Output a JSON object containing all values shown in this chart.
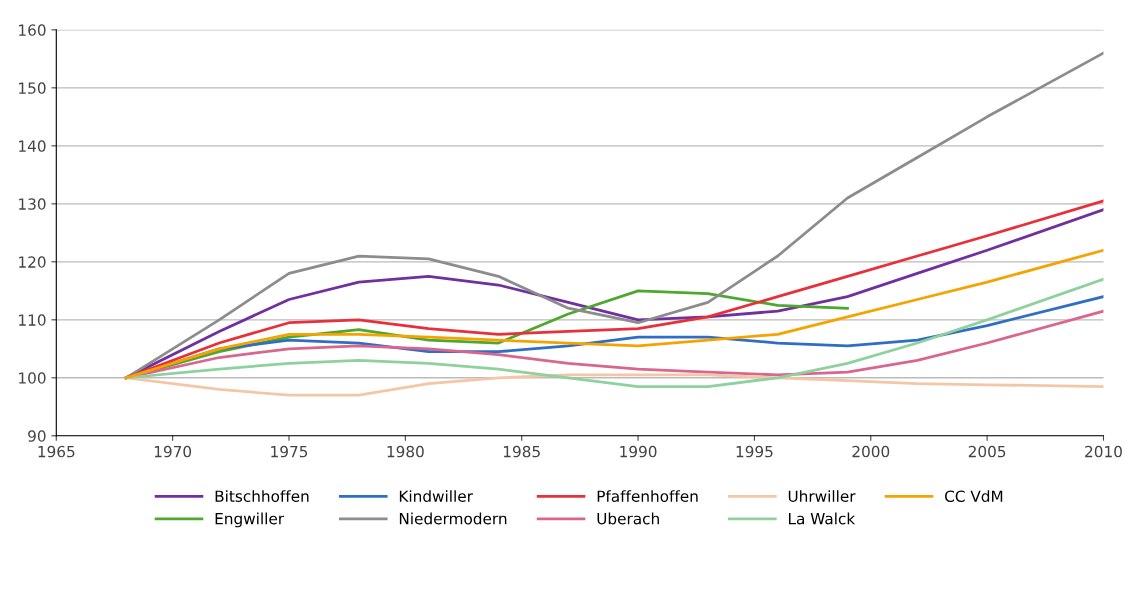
{
  "chart_data": {
    "type": "line",
    "x": [
      1968,
      1972,
      1975,
      1978,
      1981,
      1984,
      1987,
      1990,
      1993,
      1996,
      1999,
      2002,
      2005,
      2010
    ],
    "xlim": [
      1965,
      2010
    ],
    "xticks": [
      1965,
      1970,
      1975,
      1980,
      1985,
      1990,
      1995,
      2000,
      2005,
      2010
    ],
    "ylim": [
      90,
      160
    ],
    "yticks": [
      90,
      100,
      110,
      120,
      130,
      140,
      150,
      160
    ],
    "grid": "y",
    "legend": "bottom",
    "marker": "none",
    "line_style": "solid",
    "series": [
      {
        "name": "Bitschhoffen",
        "color": "#7030a0",
        "values": [
          100,
          108,
          113.5,
          116.5,
          117.5,
          116,
          113,
          110,
          110.5,
          111.5,
          114,
          118,
          122,
          129
        ]
      },
      {
        "name": "Engwiller",
        "color": "#4ea72e",
        "values": [
          100,
          104.5,
          107,
          108.3,
          106.5,
          106,
          111,
          115,
          114.5,
          112.5,
          112,
          null,
          null,
          null
        ]
      },
      {
        "name": "Kindwiller",
        "color": "#2e6ec4",
        "values": [
          100,
          105,
          106.5,
          106,
          104.5,
          104.5,
          105.5,
          107,
          107,
          106,
          105.5,
          106.5,
          109,
          114
        ]
      },
      {
        "name": "Niedermodern",
        "color": "#8c8c8c",
        "values": [
          100,
          110,
          118,
          121,
          120.5,
          117.5,
          112,
          109.5,
          113,
          121,
          131,
          138,
          145,
          156
        ]
      },
      {
        "name": "Pfaffenhoffen",
        "color": "#e8303a",
        "values": [
          100,
          106,
          109.5,
          110,
          108.5,
          107.5,
          108,
          108.5,
          110.5,
          114,
          117.5,
          121,
          124.5,
          130.5
        ]
      },
      {
        "name": "Uberach",
        "color": "#d9668f",
        "values": [
          100,
          103.5,
          105,
          105.5,
          105,
          104,
          102.5,
          101.5,
          101,
          100.5,
          101,
          103,
          106,
          111.5
        ]
      },
      {
        "name": "Uhrwiller",
        "color": "#f5c6a5",
        "values": [
          100,
          98,
          97,
          97,
          99,
          100,
          100.5,
          100.5,
          100.5,
          100,
          99.5,
          99,
          98.8,
          98.5
        ]
      },
      {
        "name": "La Walck",
        "color": "#8fd19e",
        "values": [
          100,
          101.5,
          102.5,
          103,
          102.5,
          101.5,
          100,
          98.5,
          98.5,
          100,
          102.5,
          106,
          110,
          117
        ]
      },
      {
        "name": "CC VdM",
        "color": "#f5a300",
        "values": [
          100,
          105,
          107.5,
          107.5,
          107,
          106.5,
          106,
          105.5,
          106.5,
          107.5,
          110.5,
          113.5,
          116.5,
          122
        ]
      }
    ]
  }
}
